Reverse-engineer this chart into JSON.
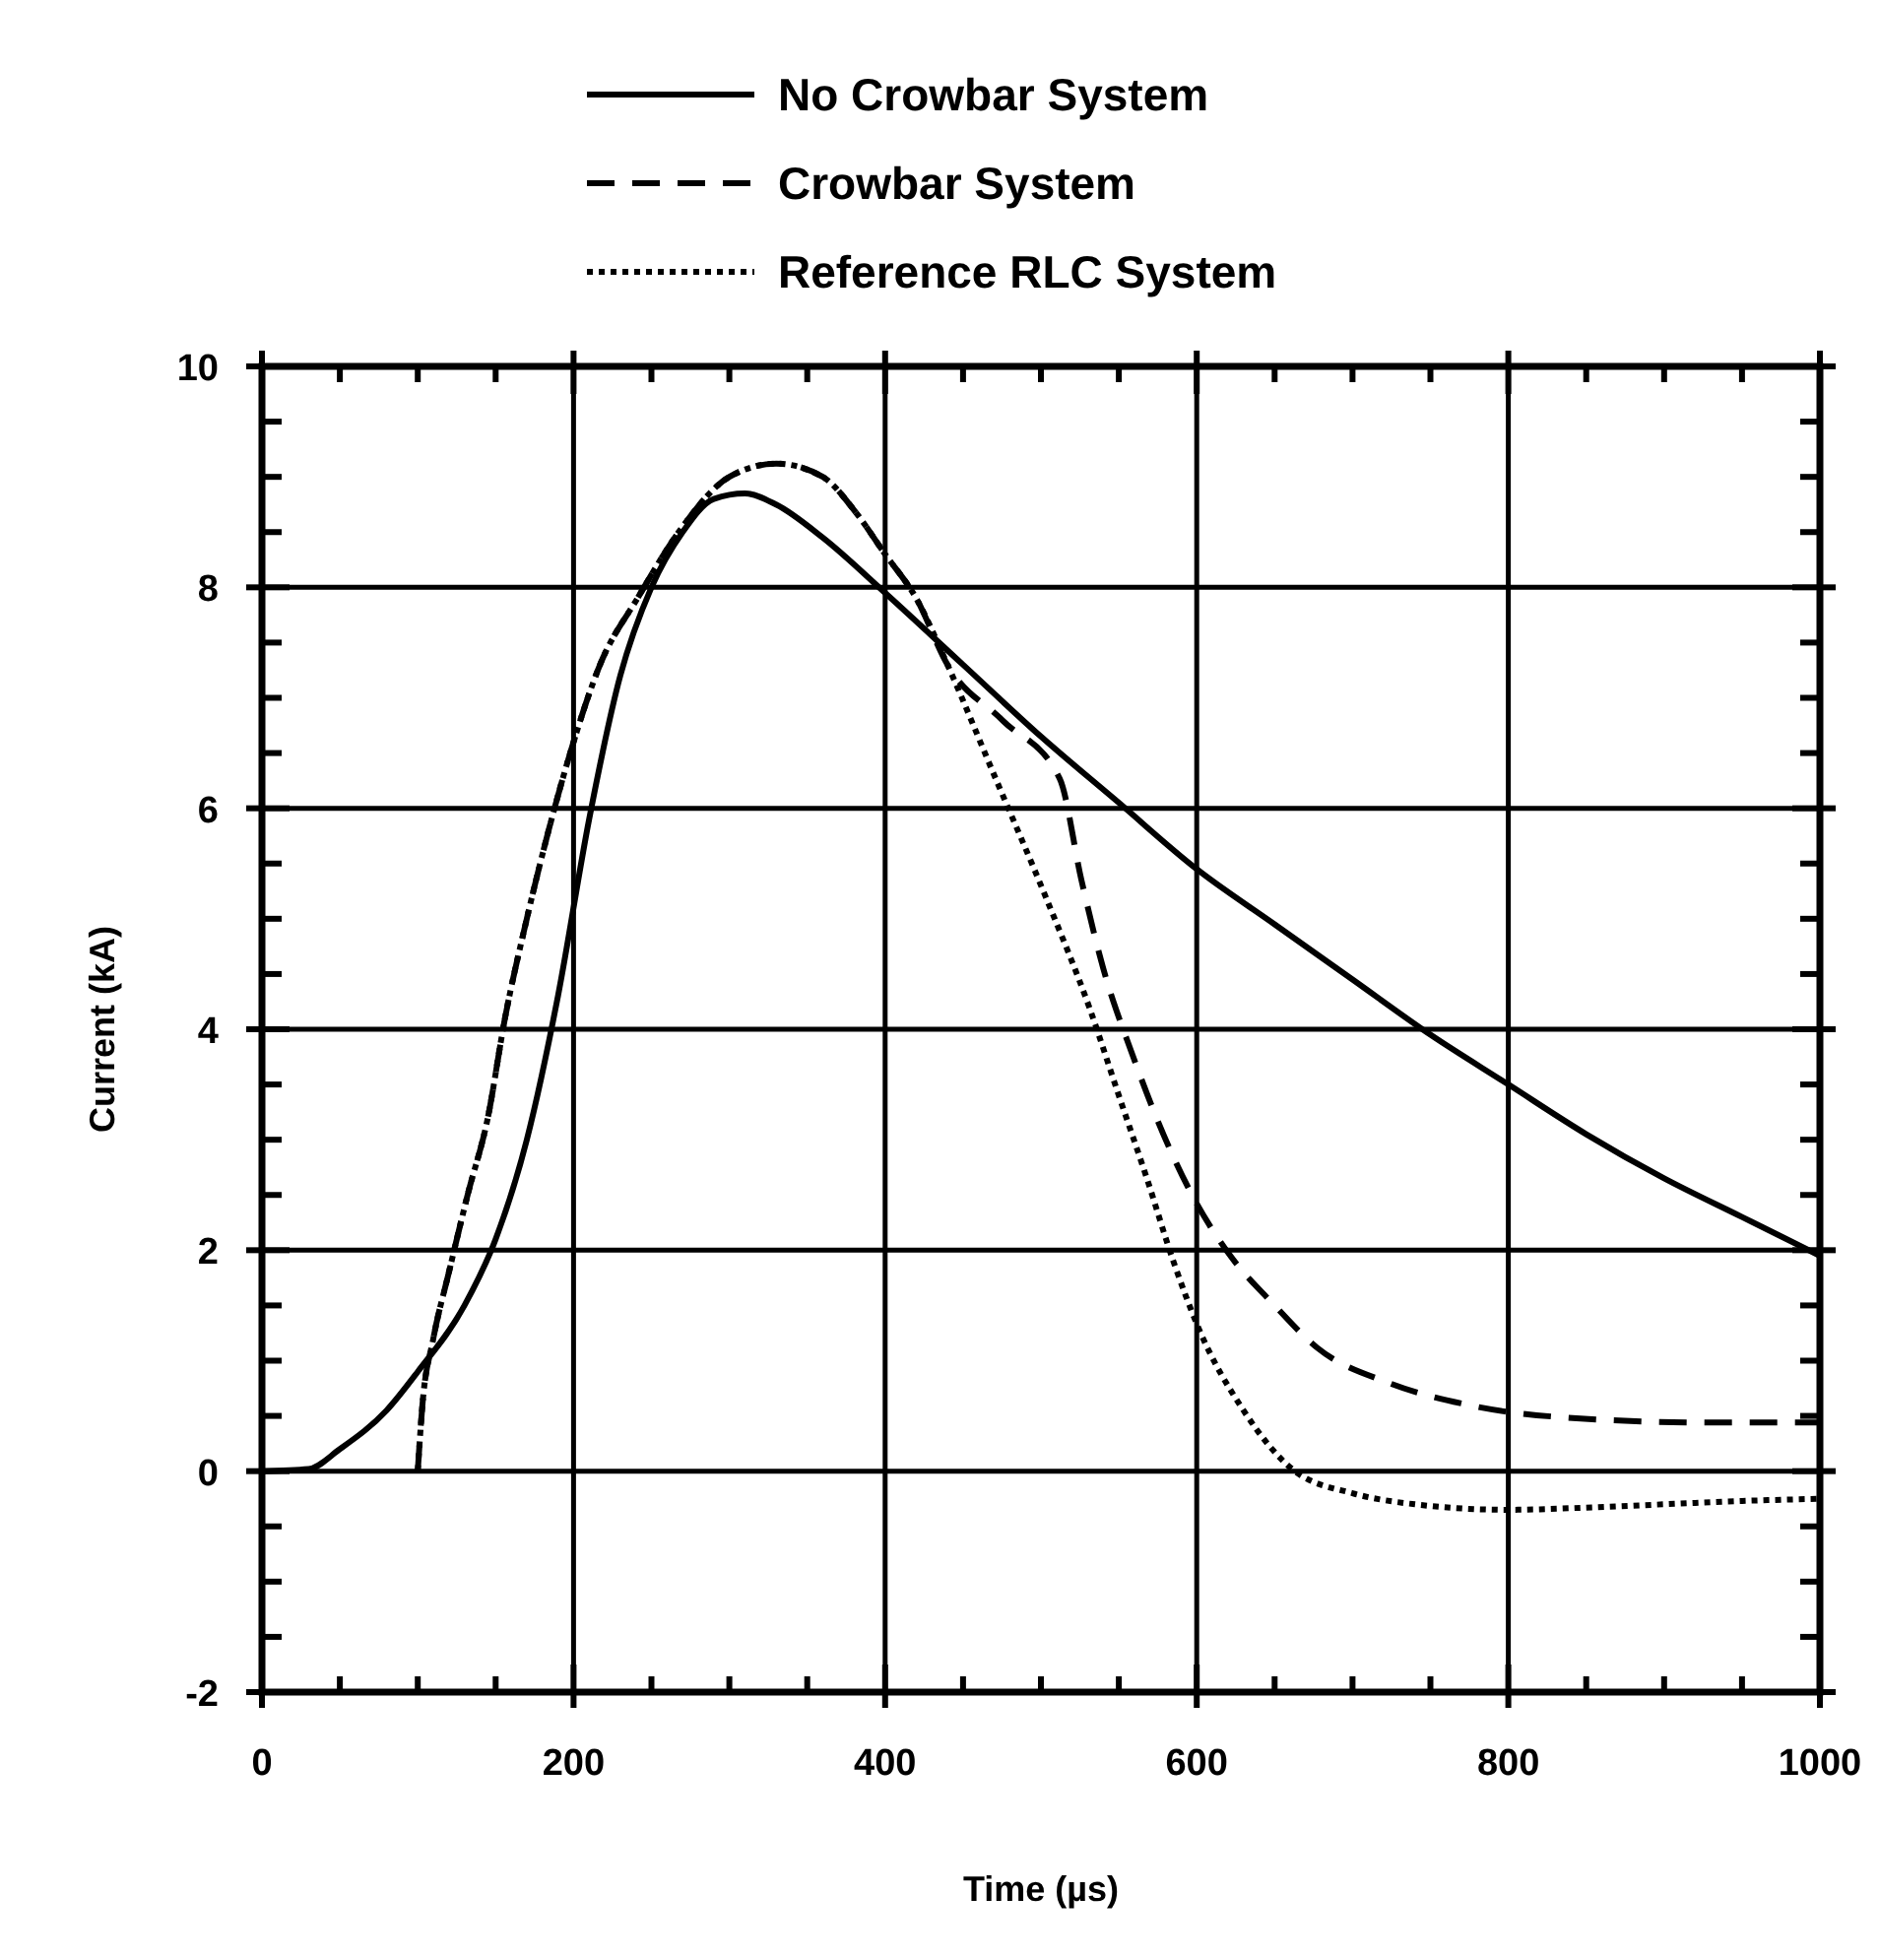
{
  "chart_data": {
    "type": "line",
    "xlabel": "Time (µs)",
    "ylabel": "Current (kA)",
    "xlim": [
      0,
      1000
    ],
    "ylim": [
      -2,
      10
    ],
    "xticks": [
      0,
      {
        "value": 50,
        "label": null
      },
      {
        "value": 100,
        "label": null
      },
      {
        "value": 150,
        "label": null
      },
      200,
      {
        "value": 250,
        "label": null
      },
      {
        "value": 300,
        "label": null
      },
      {
        "value": 350,
        "label": null
      },
      400,
      {
        "value": 450,
        "label": null
      },
      {
        "value": 500,
        "label": null
      },
      {
        "value": 550,
        "label": null
      },
      600,
      {
        "value": 650,
        "label": null
      },
      {
        "value": 700,
        "label": null
      },
      {
        "value": 750,
        "label": null
      },
      800,
      {
        "value": 850,
        "label": null
      },
      {
        "value": 900,
        "label": null
      },
      {
        "value": 950,
        "label": null
      },
      1000
    ],
    "yticks": [
      -2,
      {
        "value": -1.5,
        "label": null
      },
      {
        "value": -1,
        "label": null
      },
      {
        "value": -0.5,
        "label": null
      },
      0,
      {
        "value": 0.5,
        "label": null
      },
      {
        "value": 1,
        "label": null
      },
      {
        "value": 1.5,
        "label": null
      },
      2,
      {
        "value": 2.5,
        "label": null
      },
      {
        "value": 3,
        "label": null
      },
      {
        "value": 3.5,
        "label": null
      },
      4,
      {
        "value": 4.5,
        "label": null
      },
      {
        "value": 5,
        "label": null
      },
      {
        "value": 5.5,
        "label": null
      },
      6,
      {
        "value": 6.5,
        "label": null
      },
      {
        "value": 7,
        "label": null
      },
      {
        "value": 7.5,
        "label": null
      },
      8,
      {
        "value": 8.5,
        "label": null
      },
      {
        "value": 9,
        "label": null
      },
      {
        "value": 9.5,
        "label": null
      },
      10
    ],
    "grid": true,
    "legend": "top",
    "series": [
      {
        "name": "No Crowbar System",
        "color": "#000000",
        "line_style": "solid",
        "x": [
          0,
          30,
          50,
          80,
          100,
          130,
          150,
          170,
          190,
          210,
          230,
          250,
          270,
          290,
          310,
          330,
          360,
          400,
          450,
          500,
          550,
          600,
          650,
          700,
          750,
          800,
          850,
          900,
          950,
          1000
        ],
        "values": [
          0,
          0.02,
          0.2,
          0.55,
          0.9,
          1.5,
          2.1,
          3.0,
          4.3,
          5.9,
          7.2,
          8.0,
          8.5,
          8.8,
          8.85,
          8.75,
          8.45,
          7.95,
          7.3,
          6.65,
          6.05,
          5.45,
          4.95,
          4.45,
          3.95,
          3.5,
          3.05,
          2.65,
          2.3,
          1.95
        ]
      },
      {
        "name": "Crowbar System",
        "color": "#000000",
        "line_style": "dashed",
        "x": [
          100,
          103,
          110,
          120,
          132,
          145,
          156,
          170,
          184,
          200,
          217,
          241,
          270,
          300,
          330,
          360,
          380,
          400,
          420,
          440,
          475,
          512,
          526,
          540,
          559,
          575,
          597,
          620,
          650,
          677,
          723,
          774,
          854,
          930,
          1000
        ],
        "values": [
          0,
          0.6,
          1.2,
          1.8,
          2.5,
          3.2,
          4.1,
          5.0,
          5.8,
          6.6,
          7.3,
          7.9,
          8.55,
          9.0,
          9.12,
          9.0,
          8.7,
          8.3,
          7.9,
          7.3,
          6.8,
          6.27,
          5.35,
          4.55,
          3.76,
          3.17,
          2.5,
          1.98,
          1.5,
          1.12,
          0.8,
          0.6,
          0.47,
          0.44,
          0.44
        ]
      },
      {
        "name": "Reference RLC System",
        "color": "#000000",
        "line_style": "dotted",
        "x": [
          100,
          103,
          110,
          120,
          132,
          145,
          156,
          170,
          184,
          200,
          217,
          241,
          270,
          300,
          330,
          360,
          380,
          400,
          420,
          440,
          470,
          503,
          531,
          550,
          568,
          585,
          601,
          630,
          663,
          700,
          740,
          800,
          850,
          900,
          950,
          1000
        ],
        "values": [
          0,
          0.6,
          1.2,
          1.8,
          2.5,
          3.2,
          4.1,
          5.0,
          5.8,
          6.6,
          7.3,
          7.9,
          8.55,
          9.0,
          9.12,
          9.0,
          8.7,
          8.3,
          7.9,
          7.3,
          6.3,
          5.2,
          4.2,
          3.4,
          2.65,
          1.9,
          1.3,
          0.55,
          0,
          -0.2,
          -0.3,
          -0.35,
          -0.33,
          -0.3,
          -0.27,
          -0.25
        ]
      }
    ]
  }
}
